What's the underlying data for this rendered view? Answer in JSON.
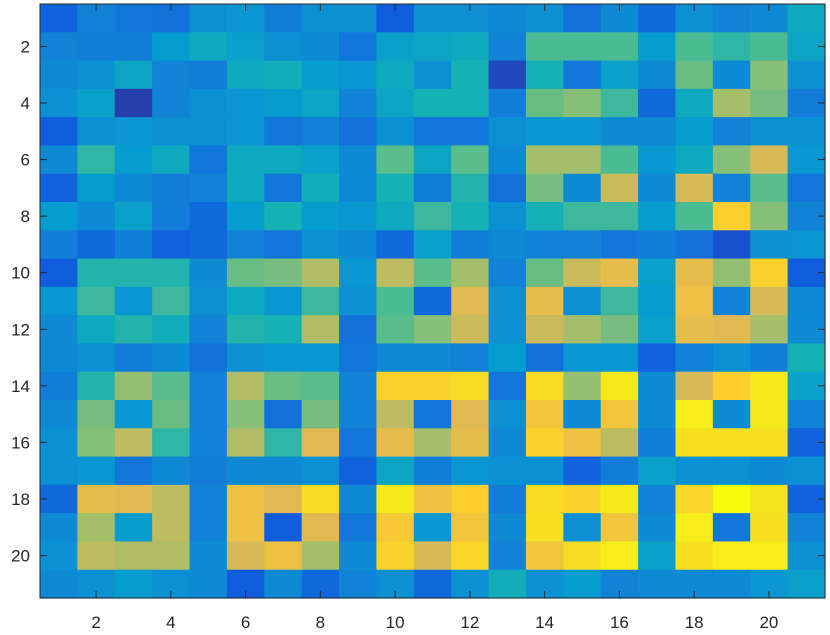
{
  "chart_data": {
    "type": "heatmap",
    "title": "",
    "xlabel": "",
    "ylabel": "",
    "colormap": "parula",
    "color_range": [
      0,
      10
    ],
    "x_range": [
      0.5,
      21.5
    ],
    "y_range": [
      0.5,
      21.5
    ],
    "y_direction": "reversed",
    "x_ticks": [
      2,
      4,
      6,
      8,
      10,
      12,
      14,
      16,
      18,
      20
    ],
    "y_ticks": [
      2,
      4,
      6,
      8,
      10,
      12,
      14,
      16,
      18,
      20
    ],
    "x_tick_labels": [
      "2",
      "4",
      "6",
      "8",
      "10",
      "12",
      "14",
      "16",
      "18",
      "20"
    ],
    "y_tick_labels": [
      "2",
      "4",
      "6",
      "8",
      "10",
      "12",
      "14",
      "16",
      "18",
      "20"
    ],
    "grid": false,
    "box": true,
    "values": [
      [
        1.2,
        2.2,
        1.8,
        1.6,
        2.6,
        2.8,
        2.0,
        2.6,
        2.6,
        1.0,
        2.6,
        2.6,
        2.4,
        2.6,
        1.6,
        2.4,
        1.4,
        2.6,
        2.2,
        2.4,
        3.6
      ],
      [
        2.2,
        2.0,
        2.0,
        3.0,
        3.6,
        3.2,
        2.6,
        2.4,
        1.8,
        3.2,
        3.4,
        3.6,
        2.2,
        4.8,
        4.8,
        4.8,
        3.0,
        4.8,
        4.4,
        4.8,
        3.4
      ],
      [
        2.4,
        2.6,
        3.4,
        2.2,
        2.0,
        3.6,
        3.8,
        3.0,
        2.8,
        3.6,
        2.6,
        4.0,
        0.6,
        4.0,
        1.8,
        3.2,
        2.4,
        5.2,
        2.4,
        5.6,
        2.6
      ],
      [
        2.6,
        3.2,
        0.4,
        2.2,
        2.6,
        2.8,
        3.0,
        3.4,
        2.2,
        3.4,
        4.0,
        4.0,
        2.0,
        5.2,
        5.6,
        4.6,
        1.4,
        3.6,
        6.0,
        5.4,
        2.0
      ],
      [
        1.0,
        2.6,
        2.8,
        2.6,
        2.6,
        2.8,
        1.8,
        2.2,
        1.6,
        2.6,
        1.8,
        1.8,
        2.6,
        2.8,
        2.8,
        2.4,
        2.4,
        3.0,
        2.2,
        2.6,
        2.6
      ],
      [
        2.4,
        4.4,
        3.0,
        3.6,
        1.8,
        3.6,
        3.6,
        3.2,
        2.4,
        5.0,
        3.4,
        5.0,
        2.4,
        6.0,
        6.0,
        4.8,
        2.8,
        3.6,
        5.6,
        6.8,
        2.8
      ],
      [
        1.2,
        3.0,
        2.4,
        2.0,
        2.2,
        3.6,
        1.8,
        3.8,
        2.4,
        4.0,
        2.0,
        4.2,
        1.6,
        5.4,
        2.4,
        6.6,
        2.4,
        6.8,
        2.2,
        5.0,
        1.8
      ],
      [
        3.0,
        2.4,
        3.2,
        2.0,
        1.4,
        3.0,
        4.0,
        3.0,
        2.8,
        3.6,
        4.6,
        4.0,
        2.6,
        4.0,
        4.6,
        4.6,
        3.0,
        4.8,
        8.0,
        5.6,
        2.2
      ],
      [
        2.0,
        1.4,
        2.0,
        1.2,
        1.4,
        2.2,
        1.8,
        2.6,
        2.4,
        1.4,
        3.2,
        2.0,
        2.4,
        2.2,
        2.2,
        1.8,
        2.0,
        1.6,
        0.8,
        2.6,
        2.8
      ],
      [
        1.0,
        4.2,
        4.2,
        4.2,
        2.4,
        5.2,
        5.4,
        6.2,
        2.8,
        6.4,
        5.0,
        6.0,
        2.2,
        5.2,
        6.6,
        7.2,
        3.2,
        7.2,
        5.8,
        8.2,
        1.0
      ],
      [
        2.8,
        4.6,
        2.8,
        4.6,
        2.6,
        3.6,
        2.8,
        4.6,
        2.6,
        4.8,
        1.4,
        7.0,
        2.6,
        7.2,
        2.6,
        4.6,
        3.0,
        7.4,
        2.2,
        6.8,
        2.4
      ],
      [
        2.4,
        3.6,
        4.2,
        3.8,
        2.2,
        4.2,
        4.0,
        6.2,
        1.6,
        5.0,
        5.6,
        6.6,
        2.6,
        6.6,
        6.0,
        5.4,
        3.2,
        7.2,
        7.0,
        6.0,
        2.4
      ],
      [
        2.4,
        2.6,
        2.0,
        2.4,
        1.6,
        2.6,
        2.8,
        2.8,
        1.8,
        2.4,
        2.4,
        2.2,
        3.0,
        1.6,
        2.8,
        2.8,
        1.2,
        2.2,
        2.6,
        2.0,
        4.0
      ],
      [
        2.0,
        4.2,
        5.8,
        5.0,
        2.2,
        6.2,
        5.2,
        5.0,
        2.2,
        8.2,
        8.2,
        8.6,
        1.8,
        8.6,
        5.8,
        9.2,
        2.4,
        6.8,
        8.0,
        9.2,
        3.2
      ],
      [
        2.4,
        5.4,
        2.8,
        5.2,
        2.2,
        5.6,
        1.6,
        5.4,
        2.2,
        6.4,
        1.8,
        7.0,
        2.6,
        7.6,
        2.4,
        7.6,
        2.4,
        9.4,
        2.4,
        9.2,
        2.2
      ],
      [
        2.6,
        5.6,
        6.4,
        4.4,
        2.2,
        6.2,
        4.4,
        7.0,
        1.8,
        7.2,
        6.0,
        7.2,
        2.4,
        8.2,
        7.4,
        6.4,
        2.0,
        8.8,
        8.8,
        8.8,
        1.2
      ],
      [
        2.6,
        2.8,
        1.8,
        2.4,
        2.0,
        2.4,
        2.4,
        2.6,
        1.2,
        3.4,
        2.0,
        2.8,
        2.6,
        2.6,
        1.2,
        2.0,
        3.2,
        2.6,
        2.6,
        2.4,
        2.6
      ],
      [
        1.4,
        7.2,
        7.0,
        6.4,
        2.2,
        7.4,
        7.0,
        8.6,
        2.4,
        9.2,
        7.4,
        8.0,
        2.0,
        8.6,
        8.2,
        9.2,
        2.2,
        8.4,
        10.0,
        9.0,
        1.2
      ],
      [
        2.4,
        6.0,
        3.0,
        6.4,
        2.2,
        7.4,
        1.0,
        7.0,
        1.8,
        7.8,
        2.8,
        7.6,
        2.4,
        8.8,
        2.6,
        7.6,
        2.4,
        9.4,
        1.8,
        8.8,
        2.2
      ],
      [
        2.6,
        6.4,
        6.2,
        6.2,
        2.4,
        6.8,
        7.4,
        6.0,
        2.4,
        8.2,
        6.8,
        8.4,
        2.2,
        7.6,
        8.6,
        9.4,
        3.2,
        8.8,
        9.4,
        9.4,
        2.6
      ],
      [
        2.4,
        2.6,
        3.0,
        2.6,
        2.4,
        1.0,
        2.4,
        1.4,
        2.2,
        2.6,
        1.4,
        2.6,
        3.8,
        2.6,
        3.0,
        2.2,
        2.4,
        2.4,
        2.4,
        2.8,
        3.2
      ]
    ]
  }
}
